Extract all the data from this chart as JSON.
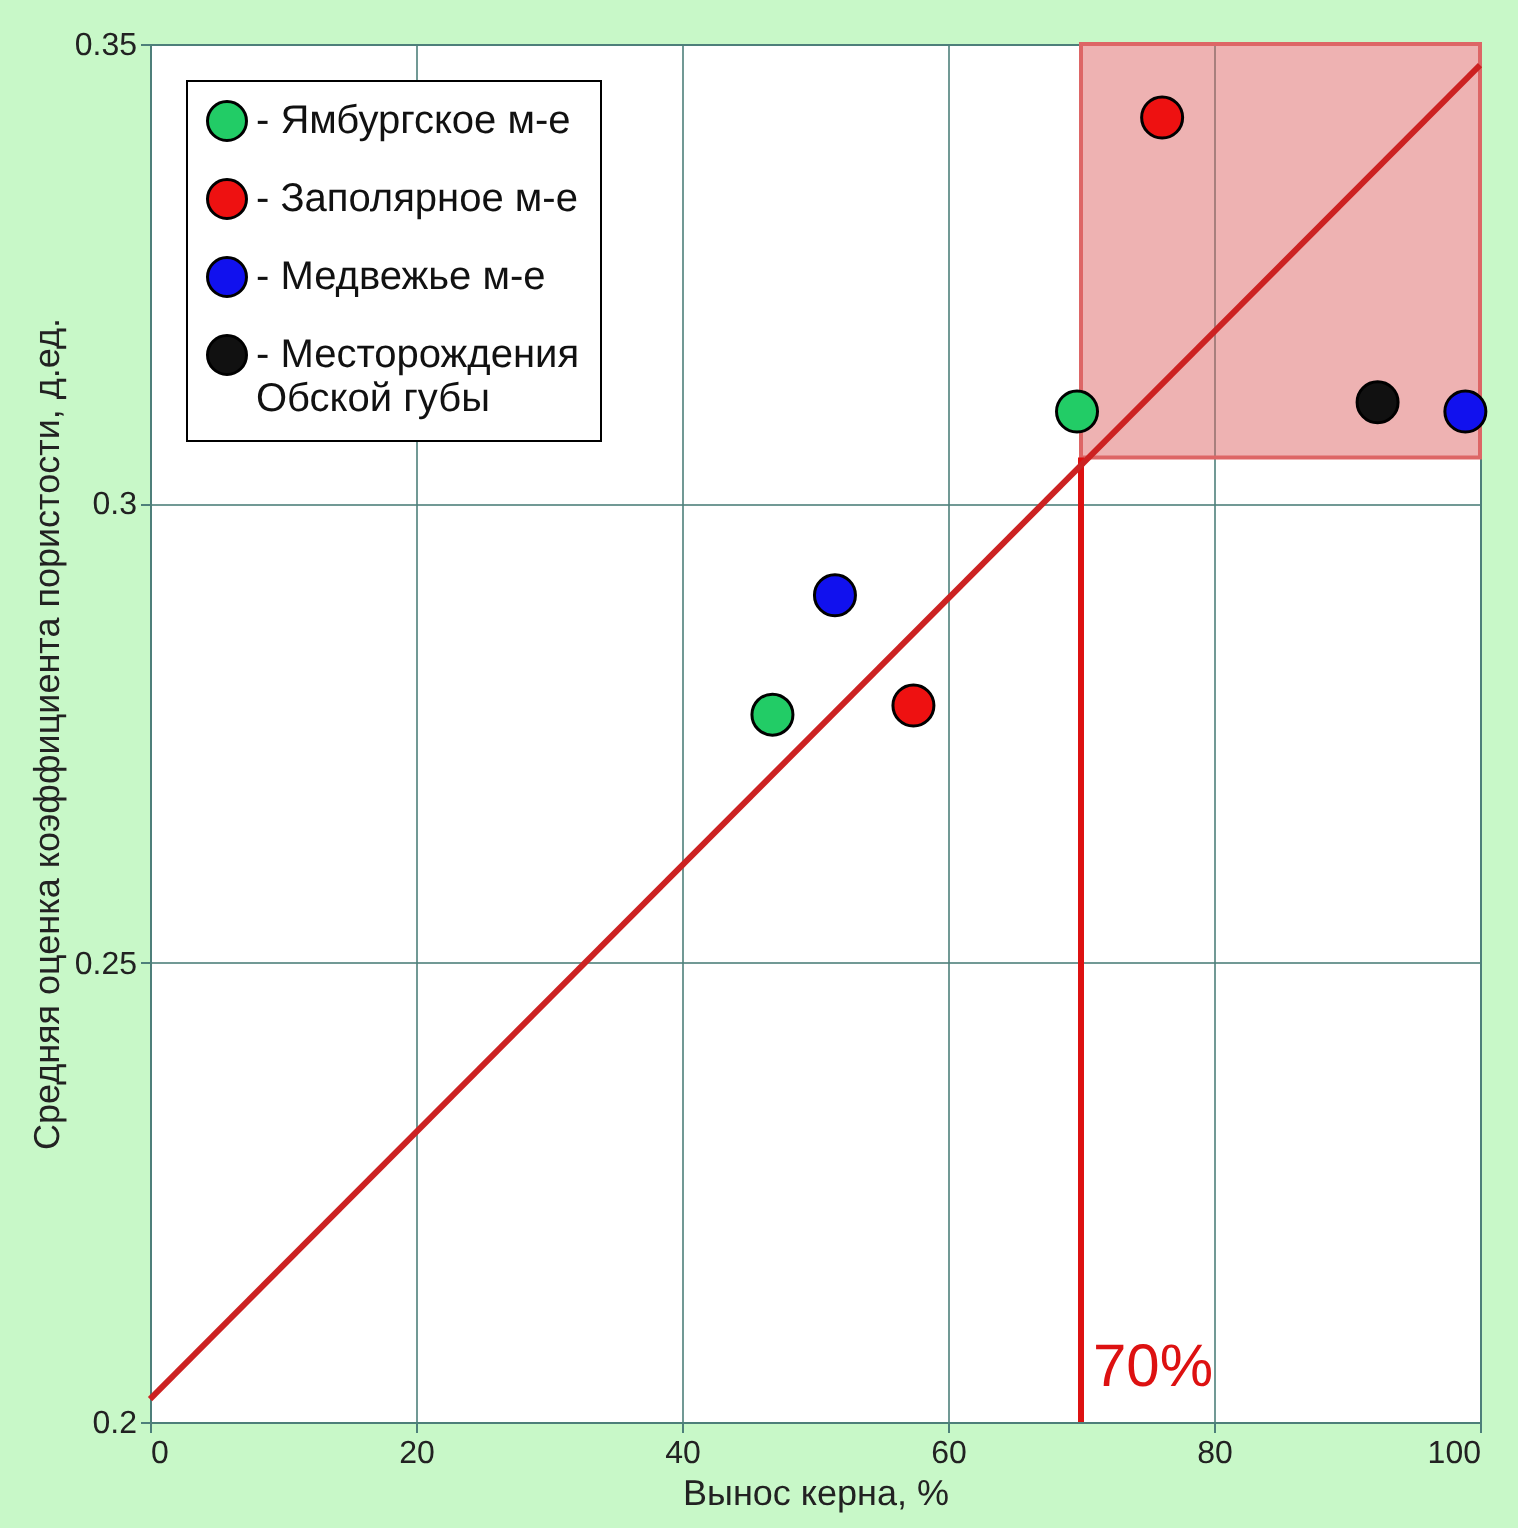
{
  "chart_data": {
    "type": "scatter",
    "xlabel": "Вынос керна, %",
    "ylabel": "Средняя оценка коэффициента пористости, д.ед.",
    "xlim": [
      0,
      100
    ],
    "xticks": [
      0,
      20,
      40,
      60,
      80,
      100
    ],
    "ylim": [
      0.2,
      0.35
    ],
    "yticks": [
      {
        "value": 0.2,
        "label": "0.2"
      },
      0.25,
      {
        "value": 0.3,
        "label": "0.3"
      },
      0.35
    ],
    "grid": true,
    "legend": "top left",
    "marker": "circle",
    "series": [
      {
        "name": "- Ямбургское м-е",
        "color": "#22cc66",
        "x": [
          46.8,
          69.7
        ],
        "values": [
          0.277,
          0.31
        ]
      },
      {
        "name": "- Заполярное м-е",
        "color": "#ee1111",
        "x": [
          57.4,
          76.1
        ],
        "values": [
          0.278,
          0.342
        ]
      },
      {
        "name": "- Медвежье м-е",
        "color": "#1111ee",
        "x": [
          51.5,
          98.9
        ],
        "values": [
          0.29,
          0.31
        ]
      },
      {
        "name": "- Месторождения Обской губы",
        "color": "#111111",
        "x": [
          92.3
        ],
        "values": [
          0.311
        ]
      },
      {
        "type": "line",
        "marker": "none",
        "color": "#cc2222",
        "x": [
          0,
          100
        ],
        "values": [
          0.2025,
          0.3477
        ]
      }
    ],
    "ref_lines": [
      {
        "axis": "x",
        "value": 70,
        "label": "70%",
        "color": "#dd1111"
      }
    ],
    "bands": [
      {
        "axis": "y",
        "from": 0.305,
        "to": 0.35,
        "color": "#dd6666"
      }
    ]
  }
}
